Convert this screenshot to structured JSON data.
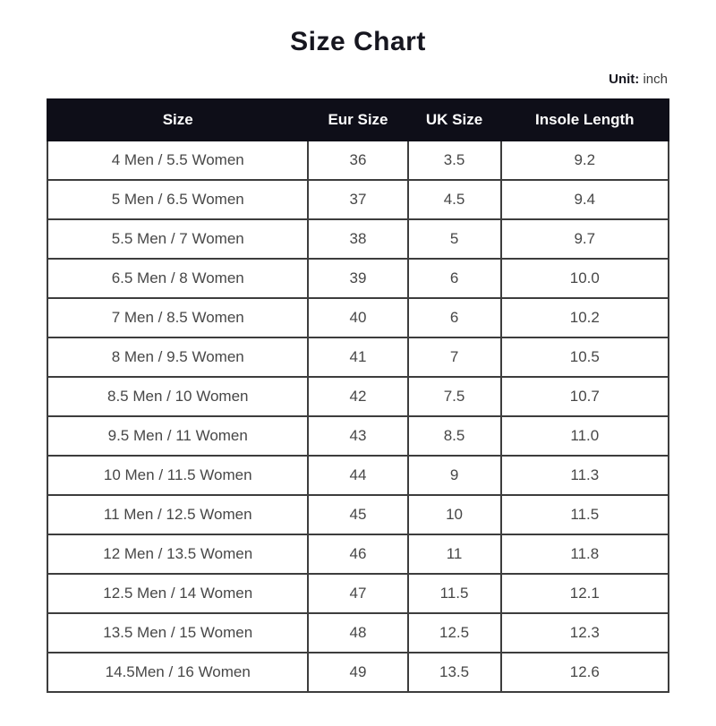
{
  "page": {
    "title": "Size Chart",
    "unit_label": "Unit:",
    "unit_value": "inch"
  },
  "table": {
    "columns": [
      "Size",
      "Eur Size",
      "UK Size",
      "Insole Length"
    ],
    "rows": [
      [
        "4 Men / 5.5 Women",
        "36",
        "3.5",
        "9.2"
      ],
      [
        "5 Men / 6.5 Women",
        "37",
        "4.5",
        "9.4"
      ],
      [
        "5.5 Men / 7 Women",
        "38",
        "5",
        "9.7"
      ],
      [
        "6.5 Men / 8 Women",
        "39",
        "6",
        "10.0"
      ],
      [
        "7 Men / 8.5 Women",
        "40",
        "6",
        "10.2"
      ],
      [
        "8 Men / 9.5 Women",
        "41",
        "7",
        "10.5"
      ],
      [
        "8.5 Men / 10 Women",
        "42",
        "7.5",
        "10.7"
      ],
      [
        "9.5 Men / 11 Women",
        "43",
        "8.5",
        "11.0"
      ],
      [
        "10 Men / 11.5 Women",
        "44",
        "9",
        "11.3"
      ],
      [
        "11 Men / 12.5 Women",
        "45",
        "10",
        "11.5"
      ],
      [
        "12 Men / 13.5 Women",
        "46",
        "11",
        "11.8"
      ],
      [
        "12.5 Men / 14 Women",
        "47",
        "11.5",
        "12.1"
      ],
      [
        "13.5 Men / 15 Women",
        "48",
        "12.5",
        "12.3"
      ],
      [
        "14.5Men / 16 Women",
        "49",
        "13.5",
        "12.6"
      ]
    ]
  },
  "chart_data": {
    "type": "table",
    "title": "Size Chart",
    "unit": "inch",
    "columns": [
      "Size",
      "Eur Size",
      "UK Size",
      "Insole Length"
    ],
    "rows": [
      [
        "4 Men / 5.5 Women",
        "36",
        "3.5",
        "9.2"
      ],
      [
        "5 Men / 6.5 Women",
        "37",
        "4.5",
        "9.4"
      ],
      [
        "5.5 Men / 7 Women",
        "38",
        "5",
        "9.7"
      ],
      [
        "6.5 Men / 8 Women",
        "39",
        "6",
        "10.0"
      ],
      [
        "7 Men / 8.5 Women",
        "40",
        "6",
        "10.2"
      ],
      [
        "8 Men / 9.5 Women",
        "41",
        "7",
        "10.5"
      ],
      [
        "8.5 Men / 10 Women",
        "42",
        "7.5",
        "10.7"
      ],
      [
        "9.5 Men / 11 Women",
        "43",
        "8.5",
        "11.0"
      ],
      [
        "10 Men / 11.5 Women",
        "44",
        "9",
        "11.3"
      ],
      [
        "11 Men / 12.5 Women",
        "45",
        "10",
        "11.5"
      ],
      [
        "12 Men / 13.5 Women",
        "46",
        "11",
        "11.8"
      ],
      [
        "12.5 Men / 14 Women",
        "47",
        "11.5",
        "12.1"
      ],
      [
        "13.5 Men / 15 Women",
        "48",
        "12.5",
        "12.3"
      ],
      [
        "14.5Men / 16 Women",
        "49",
        "13.5",
        "12.6"
      ]
    ]
  },
  "colors": {
    "header_bg": "#0e0e18",
    "header_text": "#ffffff",
    "header_separator": "#dcdcdc",
    "body_border": "#3d3d3d",
    "body_text": "#474747",
    "title_text": "#16161f",
    "page_bg": "#ffffff"
  }
}
